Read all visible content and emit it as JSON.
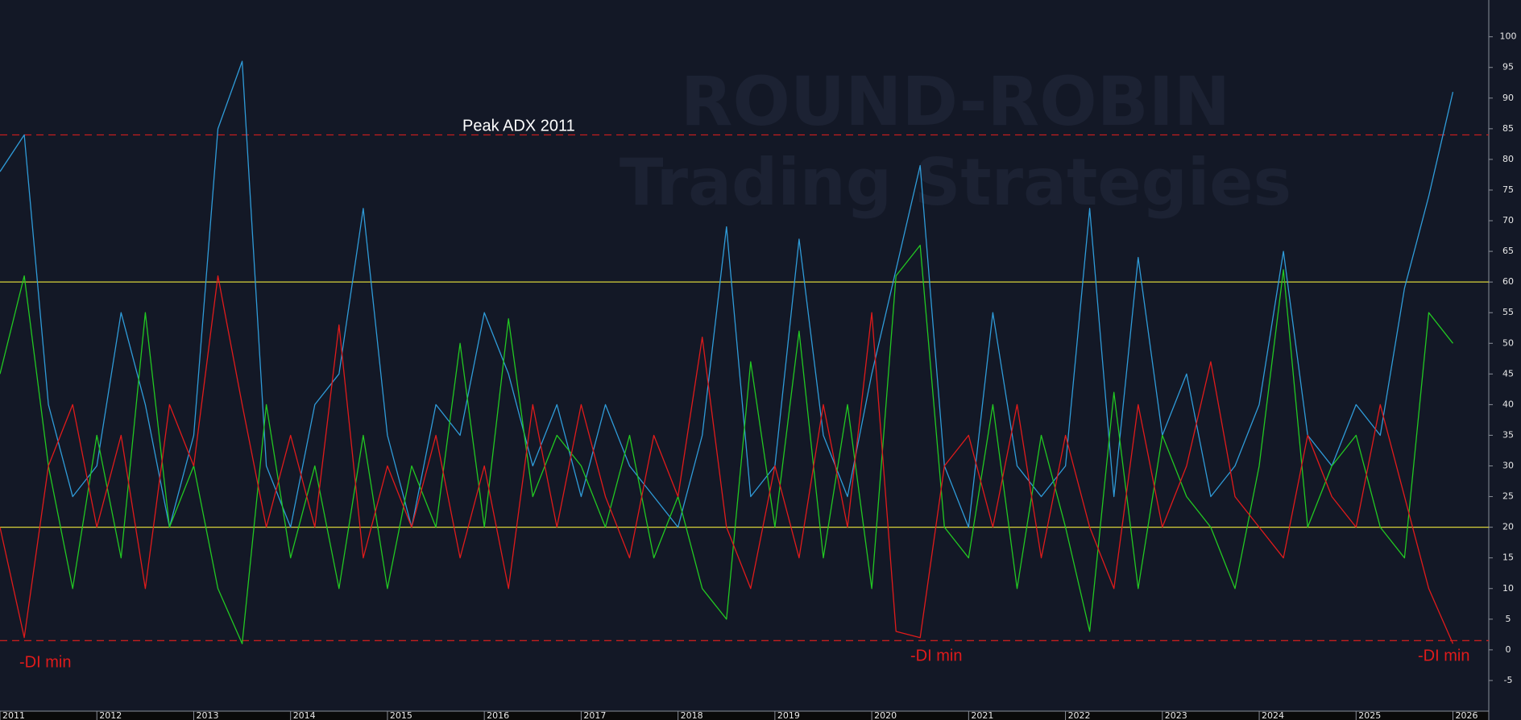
{
  "chart_data": {
    "type": "line",
    "watermark": [
      "ROUND-ROBIN",
      "Trading Strategies"
    ],
    "x": [
      2011,
      2011.25,
      2011.5,
      2011.75,
      2012,
      2012.25,
      2012.5,
      2012.75,
      2013,
      2013.25,
      2013.5,
      2013.75,
      2014,
      2014.25,
      2014.5,
      2014.75,
      2015,
      2015.25,
      2015.5,
      2015.75,
      2016,
      2016.25,
      2016.5,
      2016.75,
      2017,
      2017.25,
      2017.5,
      2017.75,
      2018,
      2018.25,
      2018.5,
      2018.75,
      2019,
      2019.25,
      2019.5,
      2019.75,
      2020,
      2020.25,
      2020.5,
      2020.75,
      2021,
      2021.25,
      2021.5,
      2021.75,
      2022,
      2022.25,
      2022.5,
      2022.75,
      2023,
      2023.25,
      2023.5,
      2023.75,
      2024,
      2024.25,
      2024.5,
      2024.75,
      2025,
      2025.25,
      2025.5,
      2025.75,
      2026
    ],
    "series": [
      {
        "color": "#2f9bd8",
        "values": [
          78,
          84,
          40,
          25,
          30,
          55,
          40,
          20,
          35,
          85,
          96,
          30,
          20,
          40,
          45,
          72,
          35,
          20,
          40,
          35,
          55,
          45,
          30,
          40,
          25,
          40,
          30,
          25,
          20,
          35,
          69,
          25,
          30,
          67,
          35,
          25,
          45,
          62,
          79,
          30,
          20,
          55,
          30,
          25,
          30,
          72,
          25,
          64,
          35,
          45,
          25,
          30,
          40,
          65,
          35,
          30,
          40,
          35,
          59,
          74,
          91
        ]
      },
      {
        "color": "#22c822",
        "values": [
          45,
          61,
          30,
          10,
          35,
          15,
          55,
          20,
          30,
          10,
          1,
          40,
          15,
          30,
          10,
          35,
          10,
          30,
          20,
          50,
          20,
          54,
          25,
          35,
          30,
          20,
          35,
          15,
          25,
          10,
          5,
          47,
          20,
          52,
          15,
          40,
          10,
          61,
          66,
          20,
          15,
          40,
          10,
          35,
          20,
          3,
          42,
          10,
          35,
          25,
          20,
          10,
          30,
          62,
          20,
          30,
          35,
          20,
          15,
          55,
          50
        ]
      },
      {
        "color": "#e01b1b",
        "values": [
          20,
          2,
          30,
          40,
          20,
          35,
          10,
          40,
          30,
          61,
          40,
          20,
          35,
          20,
          53,
          15,
          30,
          20,
          35,
          15,
          30,
          10,
          40,
          20,
          40,
          25,
          15,
          35,
          25,
          51,
          20,
          10,
          30,
          15,
          40,
          20,
          55,
          3,
          2,
          30,
          35,
          20,
          40,
          15,
          35,
          20,
          10,
          40,
          20,
          30,
          47,
          25,
          20,
          15,
          35,
          25,
          20,
          40,
          25,
          10,
          1
        ]
      }
    ],
    "hlines": [
      {
        "value": 84,
        "color": "#c41e1e",
        "dashed": true
      },
      {
        "value": 60,
        "color": "#d8d23a",
        "dashed": false
      },
      {
        "value": 20,
        "color": "#d8d23a",
        "dashed": false
      },
      {
        "value": 1.5,
        "color": "#c41e1e",
        "dashed": true
      }
    ],
    "annotations": [
      "Peak ADX 2011",
      "-DI min",
      "-DI min",
      "-DI min"
    ],
    "xlim": [
      2011,
      2026.37
    ],
    "ylim": [
      -10,
      106
    ],
    "xticks": [
      2011,
      2012,
      2013,
      2014,
      2015,
      2016,
      2017,
      2018,
      2019,
      2020,
      2021,
      2022,
      2023,
      2024,
      2025,
      2026
    ],
    "yticks": [
      -5,
      0,
      5,
      10,
      15,
      20,
      25,
      30,
      35,
      40,
      45,
      50,
      55,
      60,
      65,
      70,
      75,
      80,
      85,
      90,
      95,
      100
    ]
  }
}
